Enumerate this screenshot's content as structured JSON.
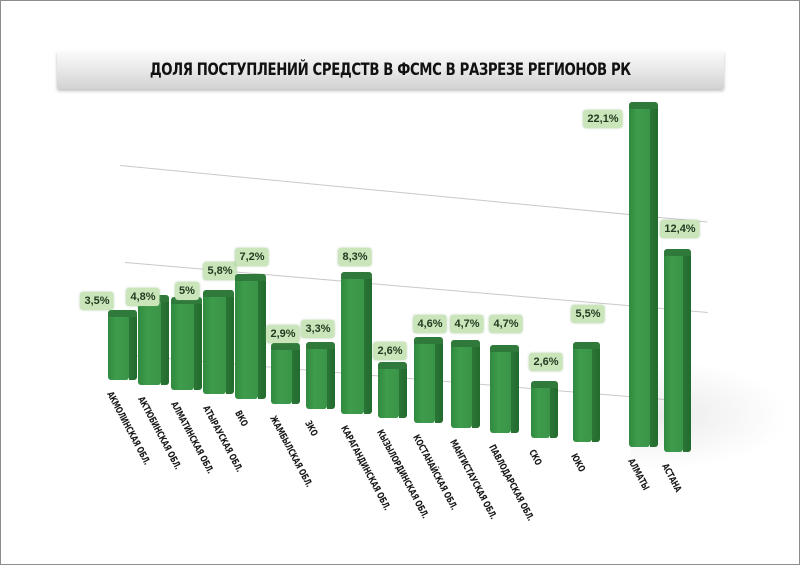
{
  "chart_data": {
    "type": "bar",
    "title": "ДОЛЯ ПОСТУПЛЕНИЙ СРЕДСТВ В ФСМС В РАЗРЕЗЕ РЕГИОНОВ РК",
    "xlabel": "",
    "ylabel": "",
    "style": "3d-perspective",
    "grid": true,
    "legend": null,
    "categories": [
      "АКМОЛИНСКАЯ ОБЛ.",
      "АКТЮБИНСКАЯ ОБЛ.",
      "АЛМАТИНСКАЯ ОБЛ.",
      "АТЫРАУСКАЯ ОБЛ.",
      "ВКО",
      "ЖАМБЫЛСКАЯ ОБЛ.",
      "ЗКО",
      "КАРАГАНДИНСКАЯ ОБЛ.",
      "КЫЗЫЛОРДИНСКАЯ ОБЛ.",
      "КОСТАНАЙСКАЯ ОБЛ.",
      "МАНГИСТАУСКАЯ ОБЛ.",
      "ПАВЛОДАРСКАЯ ОБЛ.",
      "СКО",
      "ЮКО",
      "АЛМАТЫ",
      "АСТАНА"
    ],
    "values": [
      3.5,
      4.8,
      5.0,
      5.8,
      7.2,
      2.9,
      3.3,
      8.3,
      2.6,
      4.6,
      4.7,
      4.7,
      2.6,
      5.5,
      22.1,
      12.4
    ],
    "data_labels": [
      "3,5%",
      "4,8%",
      "5%",
      "5,8%",
      "7,2%",
      "2,9%",
      "3,3%",
      "8,3%",
      "2,6%",
      "4,6%",
      "4,7%",
      "4,7%",
      "2,6%",
      "5,5%",
      "22,1%",
      "12,4%"
    ],
    "unit": "%",
    "colors": {
      "bar": "#3a9448",
      "bar_side": "#256f31",
      "label_bg": "#c9e5b9",
      "gridline": "#c9c9c9"
    }
  }
}
